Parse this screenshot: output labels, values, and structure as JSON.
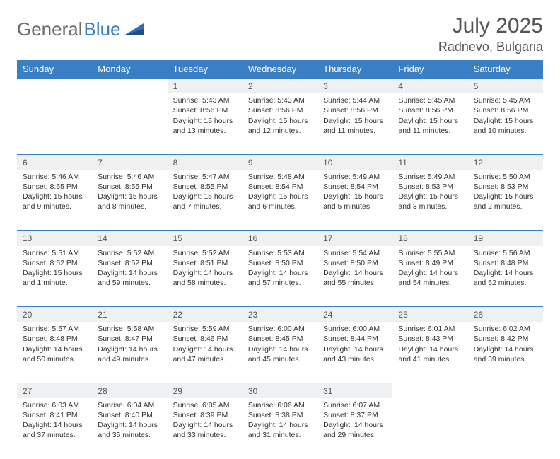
{
  "brand": {
    "part1": "General",
    "part2": "Blue"
  },
  "title": "July 2025",
  "location": "Radnevo, Bulgaria",
  "colors": {
    "header_bg": "#3a7fc4",
    "header_text": "#ffffff",
    "daynum_bg": "#eef0f2",
    "border": "#3a7fc4",
    "body_text": "#333333",
    "title_text": "#555555",
    "logo_gray": "#6b6b6b",
    "logo_blue": "#3a7fc4",
    "page_bg": "#ffffff"
  },
  "weekdays": [
    "Sunday",
    "Monday",
    "Tuesday",
    "Wednesday",
    "Thursday",
    "Friday",
    "Saturday"
  ],
  "weeks": [
    [
      null,
      null,
      {
        "n": "1",
        "sr": "5:43 AM",
        "ss": "8:56 PM",
        "dl": "15 hours and 13 minutes."
      },
      {
        "n": "2",
        "sr": "5:43 AM",
        "ss": "8:56 PM",
        "dl": "15 hours and 12 minutes."
      },
      {
        "n": "3",
        "sr": "5:44 AM",
        "ss": "8:56 PM",
        "dl": "15 hours and 11 minutes."
      },
      {
        "n": "4",
        "sr": "5:45 AM",
        "ss": "8:56 PM",
        "dl": "15 hours and 11 minutes."
      },
      {
        "n": "5",
        "sr": "5:45 AM",
        "ss": "8:56 PM",
        "dl": "15 hours and 10 minutes."
      }
    ],
    [
      {
        "n": "6",
        "sr": "5:46 AM",
        "ss": "8:55 PM",
        "dl": "15 hours and 9 minutes."
      },
      {
        "n": "7",
        "sr": "5:46 AM",
        "ss": "8:55 PM",
        "dl": "15 hours and 8 minutes."
      },
      {
        "n": "8",
        "sr": "5:47 AM",
        "ss": "8:55 PM",
        "dl": "15 hours and 7 minutes."
      },
      {
        "n": "9",
        "sr": "5:48 AM",
        "ss": "8:54 PM",
        "dl": "15 hours and 6 minutes."
      },
      {
        "n": "10",
        "sr": "5:49 AM",
        "ss": "8:54 PM",
        "dl": "15 hours and 5 minutes."
      },
      {
        "n": "11",
        "sr": "5:49 AM",
        "ss": "8:53 PM",
        "dl": "15 hours and 3 minutes."
      },
      {
        "n": "12",
        "sr": "5:50 AM",
        "ss": "8:53 PM",
        "dl": "15 hours and 2 minutes."
      }
    ],
    [
      {
        "n": "13",
        "sr": "5:51 AM",
        "ss": "8:52 PM",
        "dl": "15 hours and 1 minute."
      },
      {
        "n": "14",
        "sr": "5:52 AM",
        "ss": "8:52 PM",
        "dl": "14 hours and 59 minutes."
      },
      {
        "n": "15",
        "sr": "5:52 AM",
        "ss": "8:51 PM",
        "dl": "14 hours and 58 minutes."
      },
      {
        "n": "16",
        "sr": "5:53 AM",
        "ss": "8:50 PM",
        "dl": "14 hours and 57 minutes."
      },
      {
        "n": "17",
        "sr": "5:54 AM",
        "ss": "8:50 PM",
        "dl": "14 hours and 55 minutes."
      },
      {
        "n": "18",
        "sr": "5:55 AM",
        "ss": "8:49 PM",
        "dl": "14 hours and 54 minutes."
      },
      {
        "n": "19",
        "sr": "5:56 AM",
        "ss": "8:48 PM",
        "dl": "14 hours and 52 minutes."
      }
    ],
    [
      {
        "n": "20",
        "sr": "5:57 AM",
        "ss": "8:48 PM",
        "dl": "14 hours and 50 minutes."
      },
      {
        "n": "21",
        "sr": "5:58 AM",
        "ss": "8:47 PM",
        "dl": "14 hours and 49 minutes."
      },
      {
        "n": "22",
        "sr": "5:59 AM",
        "ss": "8:46 PM",
        "dl": "14 hours and 47 minutes."
      },
      {
        "n": "23",
        "sr": "6:00 AM",
        "ss": "8:45 PM",
        "dl": "14 hours and 45 minutes."
      },
      {
        "n": "24",
        "sr": "6:00 AM",
        "ss": "8:44 PM",
        "dl": "14 hours and 43 minutes."
      },
      {
        "n": "25",
        "sr": "6:01 AM",
        "ss": "8:43 PM",
        "dl": "14 hours and 41 minutes."
      },
      {
        "n": "26",
        "sr": "6:02 AM",
        "ss": "8:42 PM",
        "dl": "14 hours and 39 minutes."
      }
    ],
    [
      {
        "n": "27",
        "sr": "6:03 AM",
        "ss": "8:41 PM",
        "dl": "14 hours and 37 minutes."
      },
      {
        "n": "28",
        "sr": "6:04 AM",
        "ss": "8:40 PM",
        "dl": "14 hours and 35 minutes."
      },
      {
        "n": "29",
        "sr": "6:05 AM",
        "ss": "8:39 PM",
        "dl": "14 hours and 33 minutes."
      },
      {
        "n": "30",
        "sr": "6:06 AM",
        "ss": "8:38 PM",
        "dl": "14 hours and 31 minutes."
      },
      {
        "n": "31",
        "sr": "6:07 AM",
        "ss": "8:37 PM",
        "dl": "14 hours and 29 minutes."
      },
      null,
      null
    ]
  ],
  "labels": {
    "sunrise": "Sunrise:",
    "sunset": "Sunset:",
    "daylight": "Daylight:"
  }
}
